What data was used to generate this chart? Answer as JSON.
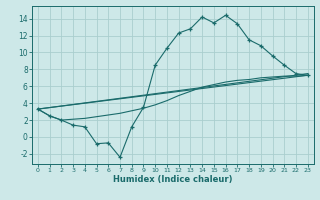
{
  "xlabel": "Humidex (Indice chaleur)",
  "background_color": "#cde8e8",
  "grid_color": "#aacece",
  "line_color": "#1a6b6b",
  "x_ticks": [
    0,
    1,
    2,
    3,
    4,
    5,
    6,
    7,
    8,
    9,
    10,
    11,
    12,
    13,
    14,
    15,
    16,
    17,
    18,
    19,
    20,
    21,
    22,
    23
  ],
  "y_ticks": [
    -2,
    0,
    2,
    4,
    6,
    8,
    10,
    12,
    14
  ],
  "ylim": [
    -3.2,
    15.5
  ],
  "xlim": [
    -0.5,
    23.5
  ],
  "line1_x": [
    0,
    1,
    2,
    3,
    4,
    5,
    6,
    7,
    8,
    9,
    10,
    11,
    12,
    13,
    14,
    15,
    16,
    17,
    18,
    19,
    20,
    21,
    22,
    23
  ],
  "line1_y": [
    3.3,
    2.5,
    2.0,
    1.4,
    1.2,
    -0.8,
    -0.7,
    -2.4,
    1.2,
    3.5,
    8.5,
    10.5,
    12.3,
    12.8,
    14.2,
    13.5,
    14.4,
    13.4,
    11.5,
    10.8,
    9.6,
    8.5,
    7.5,
    7.3
  ],
  "line2_x": [
    0,
    23
  ],
  "line2_y": [
    3.3,
    7.5
  ],
  "line3_x": [
    0,
    23
  ],
  "line3_y": [
    3.3,
    7.3
  ],
  "line4_x": [
    0,
    1,
    2,
    3,
    4,
    5,
    6,
    7,
    8,
    9,
    10,
    11,
    12,
    13,
    14,
    15,
    16,
    17,
    18,
    19,
    20,
    21,
    22,
    23
  ],
  "line4_y": [
    3.3,
    2.5,
    2.0,
    2.1,
    2.2,
    2.4,
    2.6,
    2.8,
    3.1,
    3.4,
    3.8,
    4.3,
    4.9,
    5.4,
    5.9,
    6.2,
    6.5,
    6.7,
    6.8,
    7.0,
    7.1,
    7.2,
    7.2,
    7.3
  ]
}
